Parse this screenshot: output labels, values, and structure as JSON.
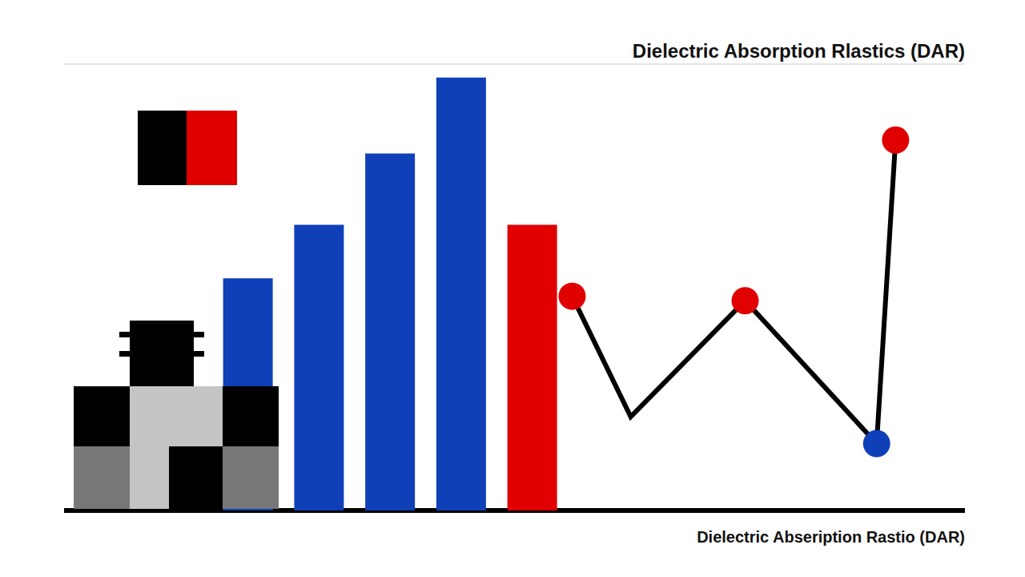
{
  "chart_data": {
    "type": "bar",
    "title": "Dielectric Absorption Rlastics (DAR)",
    "xlabel": "Dielectric Abseription Rastio (DAR)",
    "categories": [
      null,
      null,
      null,
      null,
      null
    ],
    "xlim": [
      0,
      100
    ],
    "xticks": [
      0,
      100
    ],
    "ylim": [
      0,
      100
    ],
    "yticks": [
      0,
      14,
      33,
      51,
      74,
      100
    ],
    "grid": true,
    "tick_labels": false,
    "series": [
      {
        "type": "bar",
        "values": [
          52,
          64,
          80,
          97,
          64
        ],
        "colors": [
          "#1040b8",
          "#1040b8",
          "#1040b8",
          "#1040b8",
          "#e00000"
        ]
      },
      {
        "type": "line",
        "x": [
          56.4,
          62.9,
          75.6,
          90.2,
          92.3
        ],
        "values": [
          48,
          21,
          47,
          15,
          83
        ],
        "color": "#000000",
        "marker": "circle",
        "colors": [
          "#e00000",
          null,
          "#e00000",
          "#1040b8",
          "#e00000"
        ]
      }
    ]
  }
}
